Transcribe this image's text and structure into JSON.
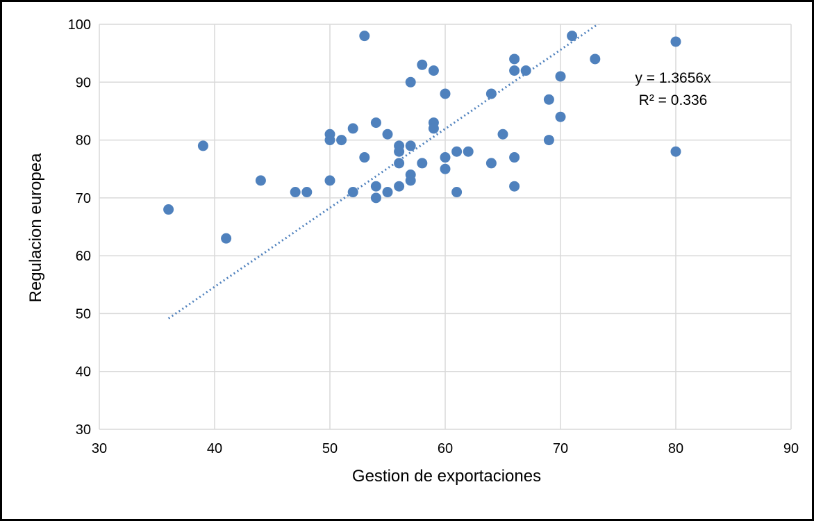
{
  "chart_data": {
    "type": "scatter",
    "x_label": "Gestion de exportaciones",
    "y_label": "Regulacion europea",
    "xlim": [
      30,
      90
    ],
    "xticks": [
      30,
      40,
      50,
      60,
      70,
      80,
      90
    ],
    "ylim": [
      30,
      100
    ],
    "yticks": [
      30,
      40,
      50,
      60,
      70,
      80,
      90,
      100
    ],
    "grid": true,
    "color": "#4f81bd",
    "x": [
      36,
      39,
      41,
      44,
      47,
      48,
      50,
      50,
      50,
      51,
      52,
      52,
      53,
      53,
      54,
      54,
      54,
      55,
      55,
      56,
      56,
      56,
      56,
      57,
      57,
      57,
      57,
      58,
      58,
      59,
      59,
      59,
      60,
      60,
      60,
      61,
      61,
      62,
      64,
      64,
      65,
      66,
      66,
      66,
      66,
      67,
      69,
      69,
      70,
      70,
      71,
      73,
      80,
      80
    ],
    "values": [
      68,
      79,
      63,
      73,
      71,
      71,
      81,
      80,
      73,
      80,
      82,
      71,
      98,
      77,
      83,
      72,
      70,
      81,
      71,
      79,
      78,
      76,
      72,
      90,
      79,
      74,
      73,
      93,
      76,
      92,
      83,
      82,
      88,
      77,
      75,
      78,
      71,
      78,
      88,
      76,
      81,
      94,
      92,
      77,
      72,
      92,
      87,
      80,
      91,
      84,
      98,
      94,
      97,
      78
    ],
    "trendline": {
      "slope": 1.3656,
      "label": "y = 1.3656x",
      "r2_label": "R² = 0.336"
    }
  }
}
